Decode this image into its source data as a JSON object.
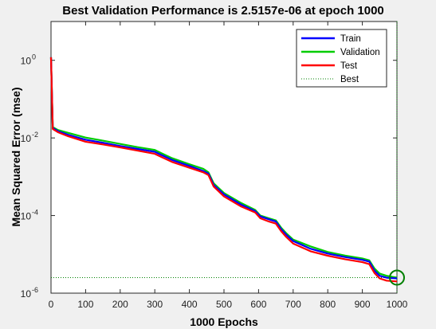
{
  "chart_data": {
    "type": "line",
    "title": "Best Validation Performance is 2.5157e-06 at epoch 1000",
    "xlabel": "1000 Epochs",
    "ylabel": "Mean Squared Error  (mse)",
    "xlim": [
      0,
      1000
    ],
    "ylim": [
      1e-06,
      10
    ],
    "yscale": "log",
    "xticks": [
      0,
      100,
      200,
      300,
      400,
      500,
      600,
      700,
      800,
      900,
      1000
    ],
    "yticks": [
      {
        "base": "10",
        "exp": "0",
        "value": 1
      },
      {
        "base": "10",
        "exp": "-2",
        "value": 0.01
      },
      {
        "base": "10",
        "exp": "-4",
        "value": 0.0001
      },
      {
        "base": "10",
        "exp": "-6",
        "value": 1e-06
      }
    ],
    "grid": false,
    "legend_position": "top-right",
    "series": [
      {
        "name": "Train",
        "color": "#0000ff",
        "x": [
          0,
          5,
          20,
          50,
          100,
          150,
          200,
          250,
          300,
          320,
          350,
          400,
          440,
          455,
          470,
          500,
          550,
          590,
          605,
          630,
          650,
          665,
          680,
          700,
          750,
          800,
          850,
          900,
          920,
          935,
          950,
          970,
          1000
        ],
        "y": [
          1.2,
          0.018,
          0.015,
          0.012,
          0.009,
          0.0075,
          0.0062,
          0.0052,
          0.0044,
          0.0036,
          0.0027,
          0.0019,
          0.0014,
          0.0012,
          0.00062,
          0.00035,
          0.00019,
          0.00013,
          9.5e-05,
          8e-05,
          7e-05,
          4.5e-05,
          3.2e-05,
          2.2e-05,
          1.4e-05,
          1.05e-05,
          8.5e-06,
          7.2e-06,
          6.5e-06,
          3.8e-06,
          2.8e-06,
          2.5e-06,
          2.4e-06
        ]
      },
      {
        "name": "Validation",
        "color": "#00cc00",
        "x": [
          0,
          5,
          20,
          50,
          100,
          150,
          200,
          250,
          300,
          320,
          350,
          400,
          440,
          455,
          470,
          500,
          550,
          590,
          605,
          630,
          650,
          665,
          680,
          700,
          750,
          800,
          850,
          900,
          920,
          935,
          950,
          970,
          1000
        ],
        "y": [
          1.2,
          0.019,
          0.016,
          0.0135,
          0.0102,
          0.0085,
          0.007,
          0.0058,
          0.0049,
          0.004,
          0.003,
          0.0021,
          0.0016,
          0.0013,
          0.00068,
          0.00038,
          0.00021,
          0.00014,
          0.0001,
          8.5e-05,
          7.5e-05,
          4.9e-05,
          3.5e-05,
          2.4e-05,
          1.6e-05,
          1.15e-05,
          9.3e-06,
          7.8e-06,
          7e-06,
          4.3e-06,
          3.2e-06,
          2.8e-06,
          2.5157e-06
        ]
      },
      {
        "name": "Test",
        "color": "#ff0000",
        "x": [
          0,
          5,
          20,
          50,
          100,
          150,
          200,
          250,
          300,
          320,
          350,
          400,
          440,
          455,
          470,
          500,
          550,
          590,
          605,
          630,
          650,
          665,
          680,
          700,
          750,
          800,
          850,
          900,
          920,
          935,
          950,
          970,
          1000
        ],
        "y": [
          1.2,
          0.017,
          0.014,
          0.011,
          0.008,
          0.0068,
          0.0057,
          0.0047,
          0.0039,
          0.0032,
          0.0024,
          0.0017,
          0.0013,
          0.0011,
          0.00056,
          0.00031,
          0.00017,
          0.00012,
          8.5e-05,
          7e-05,
          6.2e-05,
          4e-05,
          2.8e-05,
          1.9e-05,
          1.2e-05,
          9.2e-06,
          7.5e-06,
          6.3e-06,
          5.6e-06,
          3.3e-06,
          2.4e-06,
          2.1e-06,
          2e-06
        ]
      },
      {
        "name": "Best",
        "color": "#008000",
        "style": "dotted",
        "x": [
          0,
          1000
        ],
        "y": [
          2.5157e-06,
          2.5157e-06
        ]
      }
    ],
    "best_marker": {
      "x": 1000,
      "y": 2.5157e-06,
      "color": "#008000"
    }
  }
}
